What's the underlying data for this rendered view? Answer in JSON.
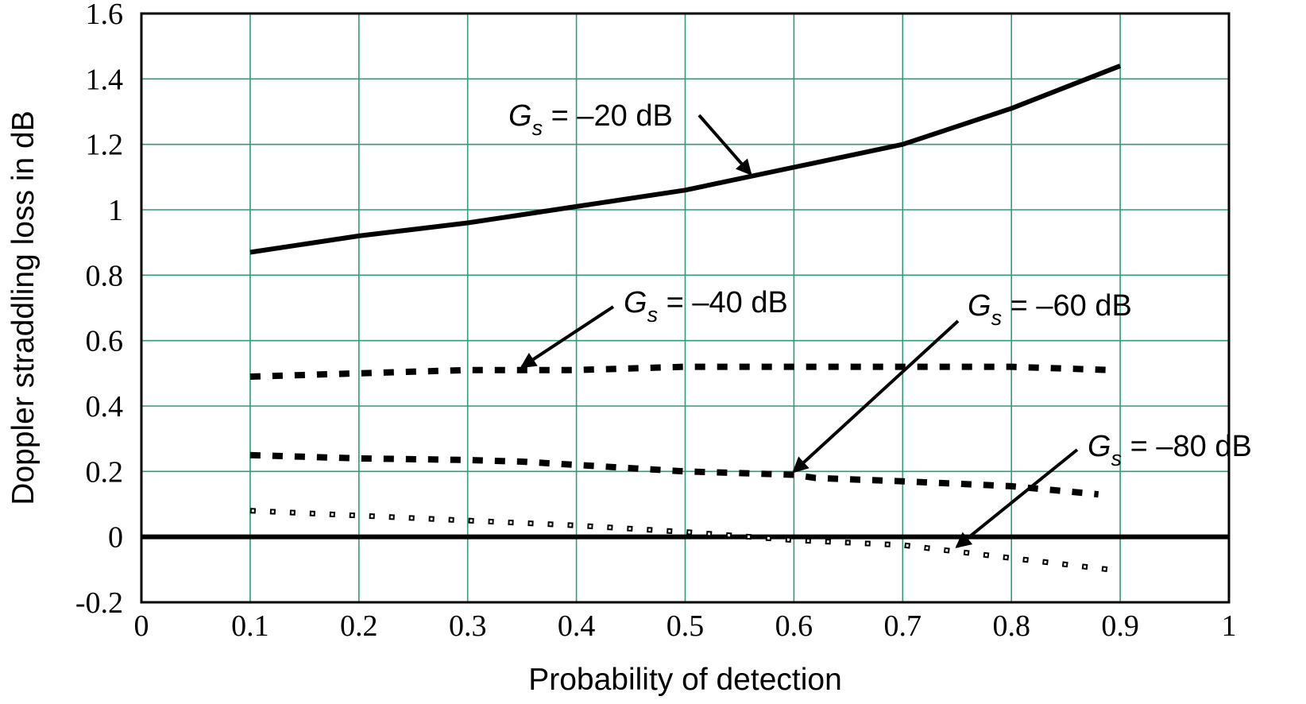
{
  "chart_data": {
    "type": "line",
    "title": "",
    "xlabel": "Probability of detection",
    "ylabel": "Doppler straddling loss in dB",
    "xlim": [
      0,
      1
    ],
    "ylim": [
      -0.2,
      1.6
    ],
    "x_ticks": [
      "0",
      "0.1",
      "0.2",
      "0.3",
      "0.4",
      "0.5",
      "0.6",
      "0.7",
      "0.8",
      "0.9",
      "1"
    ],
    "y_ticks": [
      "-0.2",
      "0",
      "0.2",
      "0.4",
      "0.6",
      "0.8",
      "1",
      "1.2",
      "1.4",
      "1.6"
    ],
    "grid": true,
    "grid_color": "#2e9b7a",
    "series": [
      {
        "name": "Gs = -20 dB",
        "style": "solid",
        "x": [
          0.1,
          0.2,
          0.3,
          0.4,
          0.5,
          0.6,
          0.7,
          0.8,
          0.9
        ],
        "y": [
          0.87,
          0.92,
          0.96,
          1.01,
          1.06,
          1.13,
          1.2,
          1.31,
          1.44
        ]
      },
      {
        "name": "Gs = -40 dB",
        "style": "dashed",
        "x": [
          0.1,
          0.2,
          0.3,
          0.4,
          0.5,
          0.6,
          0.7,
          0.8,
          0.89
        ],
        "y": [
          0.49,
          0.5,
          0.51,
          0.51,
          0.52,
          0.52,
          0.52,
          0.52,
          0.51
        ]
      },
      {
        "name": "Gs = -60 dB",
        "style": "dashed",
        "x": [
          0.1,
          0.2,
          0.3,
          0.35,
          0.4,
          0.5,
          0.6,
          0.62,
          0.7,
          0.8,
          0.88
        ],
        "y": [
          0.25,
          0.24,
          0.235,
          0.23,
          0.22,
          0.2,
          0.19,
          0.18,
          0.17,
          0.155,
          0.13
        ]
      },
      {
        "name": "Gs = -80 dB",
        "style": "dotted",
        "x": [
          0.1,
          0.2,
          0.3,
          0.4,
          0.5,
          0.6,
          0.7,
          0.8,
          0.89
        ],
        "y": [
          0.08,
          0.065,
          0.05,
          0.035,
          0.015,
          -0.01,
          -0.025,
          -0.065,
          -0.1
        ]
      }
    ],
    "reference_line": {
      "y": 0,
      "style": "solid"
    },
    "annotations": [
      {
        "symbol": "G",
        "subscript": "s",
        "text": " = –20 dB",
        "target": [
          0.56,
          1.11
        ]
      },
      {
        "symbol": "G",
        "subscript": "s",
        "text": " = –40 dB",
        "target": [
          0.35,
          0.52
        ]
      },
      {
        "symbol": "G",
        "subscript": "s",
        "text": " = –60 dB",
        "target": [
          0.6,
          0.2
        ]
      },
      {
        "symbol": "G",
        "subscript": "s",
        "text": " = –80 dB",
        "target": [
          0.75,
          -0.03
        ]
      }
    ]
  }
}
